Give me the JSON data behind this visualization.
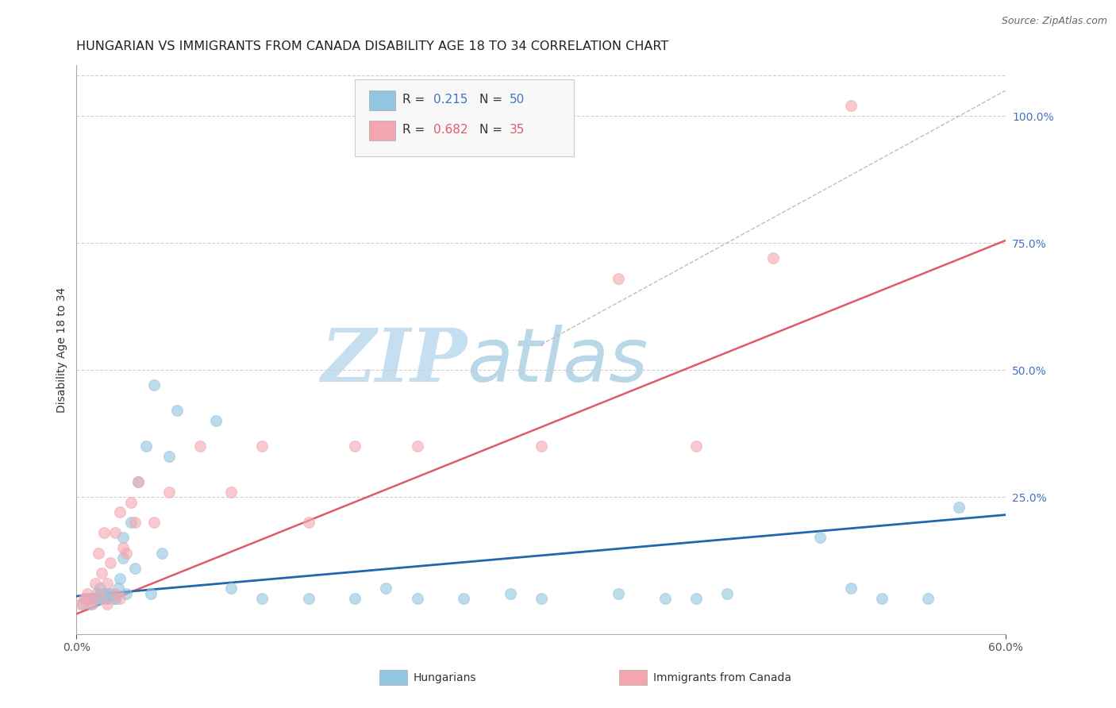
{
  "title": "HUNGARIAN VS IMMIGRANTS FROM CANADA DISABILITY AGE 18 TO 34 CORRELATION CHART",
  "source": "Source: ZipAtlas.com",
  "ylabel": "Disability Age 18 to 34",
  "y_tick_labels": [
    "100.0%",
    "75.0%",
    "50.0%",
    "25.0%"
  ],
  "y_tick_positions": [
    1.0,
    0.75,
    0.5,
    0.25
  ],
  "xlim": [
    0.0,
    0.6
  ],
  "ylim": [
    -0.02,
    1.1
  ],
  "blue_scatter_x": [
    0.004,
    0.006,
    0.008,
    0.01,
    0.01,
    0.012,
    0.013,
    0.015,
    0.015,
    0.016,
    0.018,
    0.02,
    0.02,
    0.022,
    0.025,
    0.027,
    0.028,
    0.03,
    0.03,
    0.032,
    0.035,
    0.038,
    0.04,
    0.045,
    0.048,
    0.05,
    0.055,
    0.06,
    0.065,
    0.09,
    0.1,
    0.12,
    0.15,
    0.18,
    0.2,
    0.22,
    0.25,
    0.28,
    0.3,
    0.35,
    0.38,
    0.4,
    0.42,
    0.48,
    0.5,
    0.52,
    0.55,
    0.57,
    0.025,
    0.02
  ],
  "blue_scatter_y": [
    0.04,
    0.05,
    0.05,
    0.05,
    0.04,
    0.05,
    0.06,
    0.05,
    0.07,
    0.05,
    0.06,
    0.05,
    0.06,
    0.06,
    0.05,
    0.07,
    0.09,
    0.13,
    0.17,
    0.06,
    0.2,
    0.11,
    0.28,
    0.35,
    0.06,
    0.47,
    0.14,
    0.33,
    0.42,
    0.4,
    0.07,
    0.05,
    0.05,
    0.05,
    0.07,
    0.05,
    0.05,
    0.06,
    0.05,
    0.06,
    0.05,
    0.05,
    0.06,
    0.17,
    0.07,
    0.05,
    0.05,
    0.23,
    0.05,
    0.05
  ],
  "pink_scatter_x": [
    0.003,
    0.005,
    0.007,
    0.009,
    0.01,
    0.012,
    0.014,
    0.016,
    0.018,
    0.02,
    0.022,
    0.025,
    0.028,
    0.03,
    0.032,
    0.035,
    0.038,
    0.04,
    0.05,
    0.06,
    0.08,
    0.1,
    0.12,
    0.15,
    0.18,
    0.22,
    0.3,
    0.35,
    0.4,
    0.45,
    0.015,
    0.02,
    0.025,
    0.028,
    0.5
  ],
  "pink_scatter_y": [
    0.04,
    0.05,
    0.06,
    0.04,
    0.05,
    0.08,
    0.14,
    0.1,
    0.18,
    0.08,
    0.12,
    0.18,
    0.22,
    0.15,
    0.14,
    0.24,
    0.2,
    0.28,
    0.2,
    0.26,
    0.35,
    0.26,
    0.35,
    0.2,
    0.35,
    0.35,
    0.35,
    0.68,
    0.35,
    0.72,
    0.06,
    0.04,
    0.06,
    0.05,
    1.02
  ],
  "blue_trend_x": [
    0.0,
    0.6
  ],
  "blue_trend_y": [
    0.055,
    0.215
  ],
  "pink_trend_x": [
    0.0,
    0.6
  ],
  "pink_trend_y": [
    0.02,
    0.755
  ],
  "ref_line_x": [
    0.3,
    0.6
  ],
  "ref_line_y": [
    0.55,
    1.05
  ],
  "blue_scatter_color": "#92c5de",
  "pink_scatter_color": "#f4a6b0",
  "blue_line_color": "#2166ac",
  "pink_line_color": "#e05a6a",
  "ref_line_color": "#c9b8b8",
  "watermark_text_1": "ZIP",
  "watermark_text_2": "atlas",
  "watermark_color_1": "#c5dff0",
  "watermark_color_2": "#b8d8e8",
  "background_color": "#ffffff",
  "title_fontsize": 11.5,
  "axis_label_fontsize": 10,
  "tick_fontsize": 10,
  "right_axis_color": "#4472c4",
  "grid_color": "#d0d0d0",
  "legend_box_color": "#f8f8f8",
  "legend_border_color": "#cccccc",
  "legend_r_color": "#4472c4",
  "legend_n_color": "#e05a6a",
  "bottom_legend_label1": "Hungarians",
  "bottom_legend_label2": "Immigrants from Canada"
}
